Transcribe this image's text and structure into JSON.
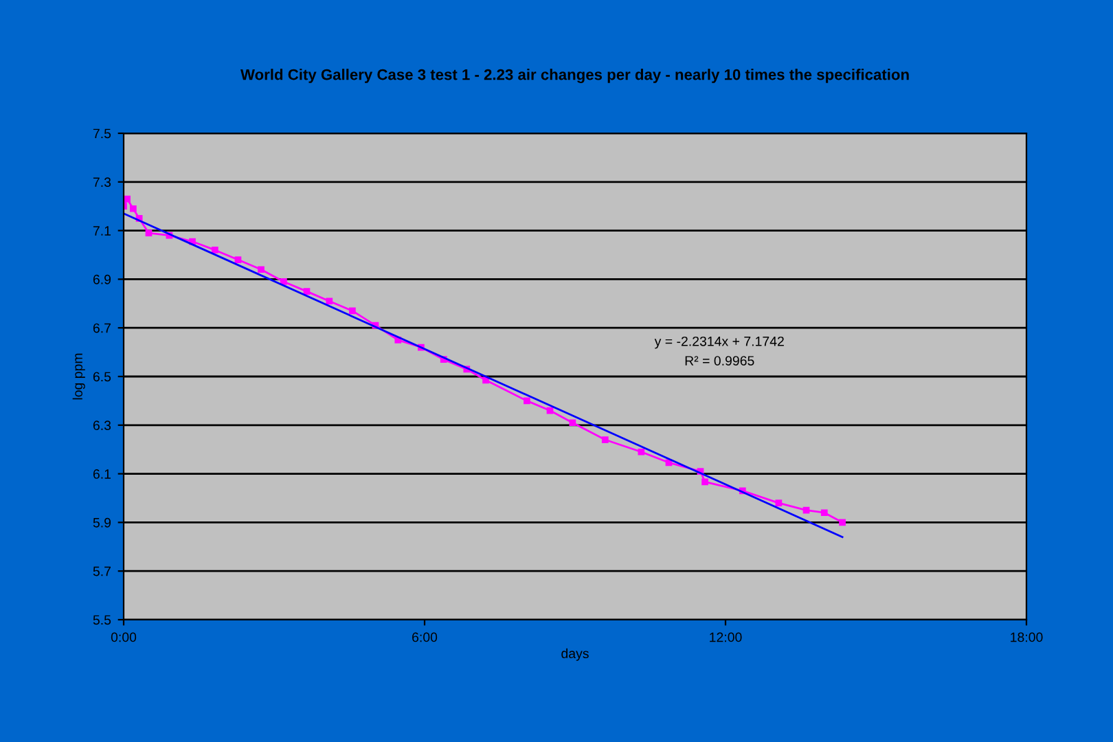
{
  "chart_data": {
    "type": "line",
    "title": "World City Gallery Case 3 test 1 - 2.23 air changes per day - nearly 10 times the specification",
    "xlabel": "days",
    "ylabel": "log ppm",
    "series": [
      {
        "color": "#ff00ff",
        "marker": "square",
        "x": [
          0,
          0.07,
          0.19,
          0.31,
          0.5,
          0.91,
          1.37,
          1.82,
          2.28,
          2.74,
          3.19,
          3.65,
          4.1,
          4.56,
          5.02,
          5.47,
          5.93,
          6.38,
          6.84,
          7.22,
          8.04,
          8.5,
          8.95,
          9.6,
          10.32,
          10.87,
          11.5,
          11.59,
          12.34,
          13.06,
          13.61,
          13.97,
          14.33
        ],
        "values": [
          7.2,
          7.23,
          7.19,
          7.15,
          7.09,
          7.08,
          7.055,
          7.02,
          6.98,
          6.94,
          6.89,
          6.85,
          6.81,
          6.77,
          6.71,
          6.65,
          6.62,
          6.57,
          6.53,
          6.485,
          6.4,
          6.36,
          6.31,
          6.24,
          6.19,
          6.146,
          6.11,
          6.067,
          6.03,
          5.98,
          5.95,
          5.94,
          5.9
        ]
      },
      {
        "type": "line",
        "color": "#0000ff",
        "marker": "none",
        "x": [
          0,
          14.33
        ],
        "values": [
          7.17,
          5.84
        ]
      }
    ],
    "xlim": [
      0,
      18
    ],
    "xticks": [
      {
        "value": 0,
        "label": "0:00"
      },
      {
        "value": 6,
        "label": "6:00"
      },
      {
        "value": 12,
        "label": "12:00"
      },
      {
        "value": 18,
        "label": "18:00"
      }
    ],
    "ylim": [
      5.5,
      7.5
    ],
    "yticks": [
      5.5,
      5.7,
      5.9,
      6.1,
      6.3,
      6.5,
      6.7,
      6.9,
      7.1,
      7.3,
      7.5
    ],
    "grid": "y",
    "legend": false,
    "annotations": [
      "y = -2.2314x + 7.1742",
      "R² = 0.9965"
    ]
  }
}
